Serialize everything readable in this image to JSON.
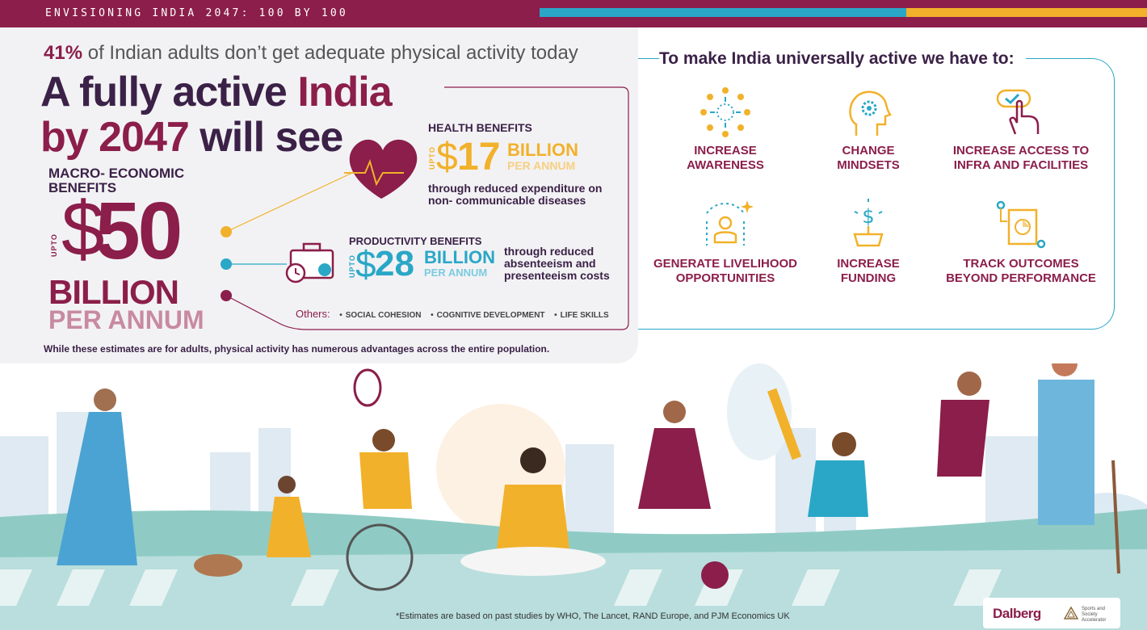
{
  "banner": {
    "title": "ENVISIONING INDIA 2047: 100 BY 100",
    "colors": {
      "base": "#8b1e4a",
      "blue": "#2aa7c7",
      "yellow": "#f2b12b"
    }
  },
  "intro": {
    "stat_pct": "41%",
    "stat_text": "of Indian adults don’t get adequate physical activity today"
  },
  "title": {
    "line1_a": "A fully active ",
    "line1_b": "India",
    "line2_a": "by 2047",
    "line2_b": " will see"
  },
  "macro": {
    "label": "MACRO- ECONOMIC BENEFITS",
    "upto": "UPTO",
    "currency": "$",
    "amount": "50",
    "unit": "BILLION",
    "period": "PER ANNUM"
  },
  "health": {
    "heading": "HEALTH BENEFITS",
    "upto": "UPTO",
    "currency": "$",
    "amount": "17",
    "unit": "BILLION",
    "period": "PER ANNUM",
    "description": "through reduced expenditure on non- communicable diseases",
    "icon": "heart-pulse-icon"
  },
  "productivity": {
    "heading": "PRODUCTIVITY BENEFITS",
    "upto": "UPTO",
    "currency": "$",
    "amount": "28",
    "unit": "BILLION",
    "period": "PER ANNUM",
    "description": "through reduced absenteeism and presenteeism costs",
    "icon": "briefcase-clock-icon"
  },
  "others": {
    "label": "Others:",
    "items": [
      "SOCIAL COHESION",
      "COGNITIVE DEVELOPMENT",
      "LIFE SKILLS"
    ]
  },
  "note": "While these estimates are for adults, physical activity has numerous advantages across the entire population.",
  "actions": {
    "title": "To make India universally active we have to:",
    "items": [
      {
        "label_1": "INCREASE",
        "label_2": "AWARENESS",
        "icon": "burst-icon"
      },
      {
        "label_1": "CHANGE",
        "label_2": "MINDSETS",
        "icon": "head-gear-icon"
      },
      {
        "label_1": "INCREASE ACCESS TO",
        "label_2": "INFRA AND FACILITIES",
        "icon": "hand-tap-icon"
      },
      {
        "label_1": "GENERATE LIVELIHOOD",
        "label_2": "OPPORTUNITIES",
        "icon": "person-sparkle-icon"
      },
      {
        "label_1": "INCREASE",
        "label_2": "FUNDING",
        "icon": "dollar-plant-icon"
      },
      {
        "label_1": "TRACK OUTCOMES",
        "label_2": "BEYOND PERFORMANCE",
        "icon": "chart-document-icon"
      }
    ]
  },
  "footnote": "*Estimates are based on past studies by WHO, The Lancet, RAND Europe, and PJM Economics UK",
  "logos": {
    "dalberg": "Dalberg",
    "ssa": "Sports and Society Accelerator"
  }
}
